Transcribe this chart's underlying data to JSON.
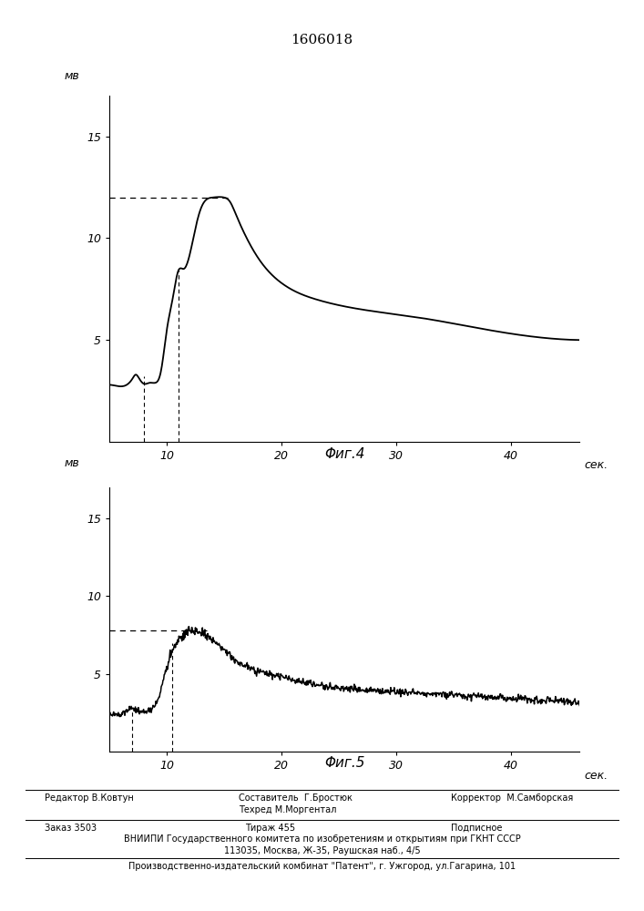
{
  "title": "1606018",
  "fig4_label": "Φиг.4",
  "fig5_label": "Φиг.5",
  "ylabel": "мв",
  "xlabel": "сек.",
  "xticks": [
    10,
    20,
    30,
    40
  ],
  "fig4": {
    "yticks": [
      5,
      10,
      15
    ],
    "ylim": [
      0,
      17
    ],
    "xlim": [
      5,
      46
    ],
    "dashed_y": 12.0,
    "vline1_x": 8.0,
    "vline2_x": 11.0
  },
  "fig5": {
    "yticks": [
      5,
      10,
      15
    ],
    "ylim": [
      0,
      17
    ],
    "xlim": [
      5,
      46
    ],
    "dashed_y": 7.8,
    "vline1_x": 7.0,
    "vline2_x": 10.5
  }
}
